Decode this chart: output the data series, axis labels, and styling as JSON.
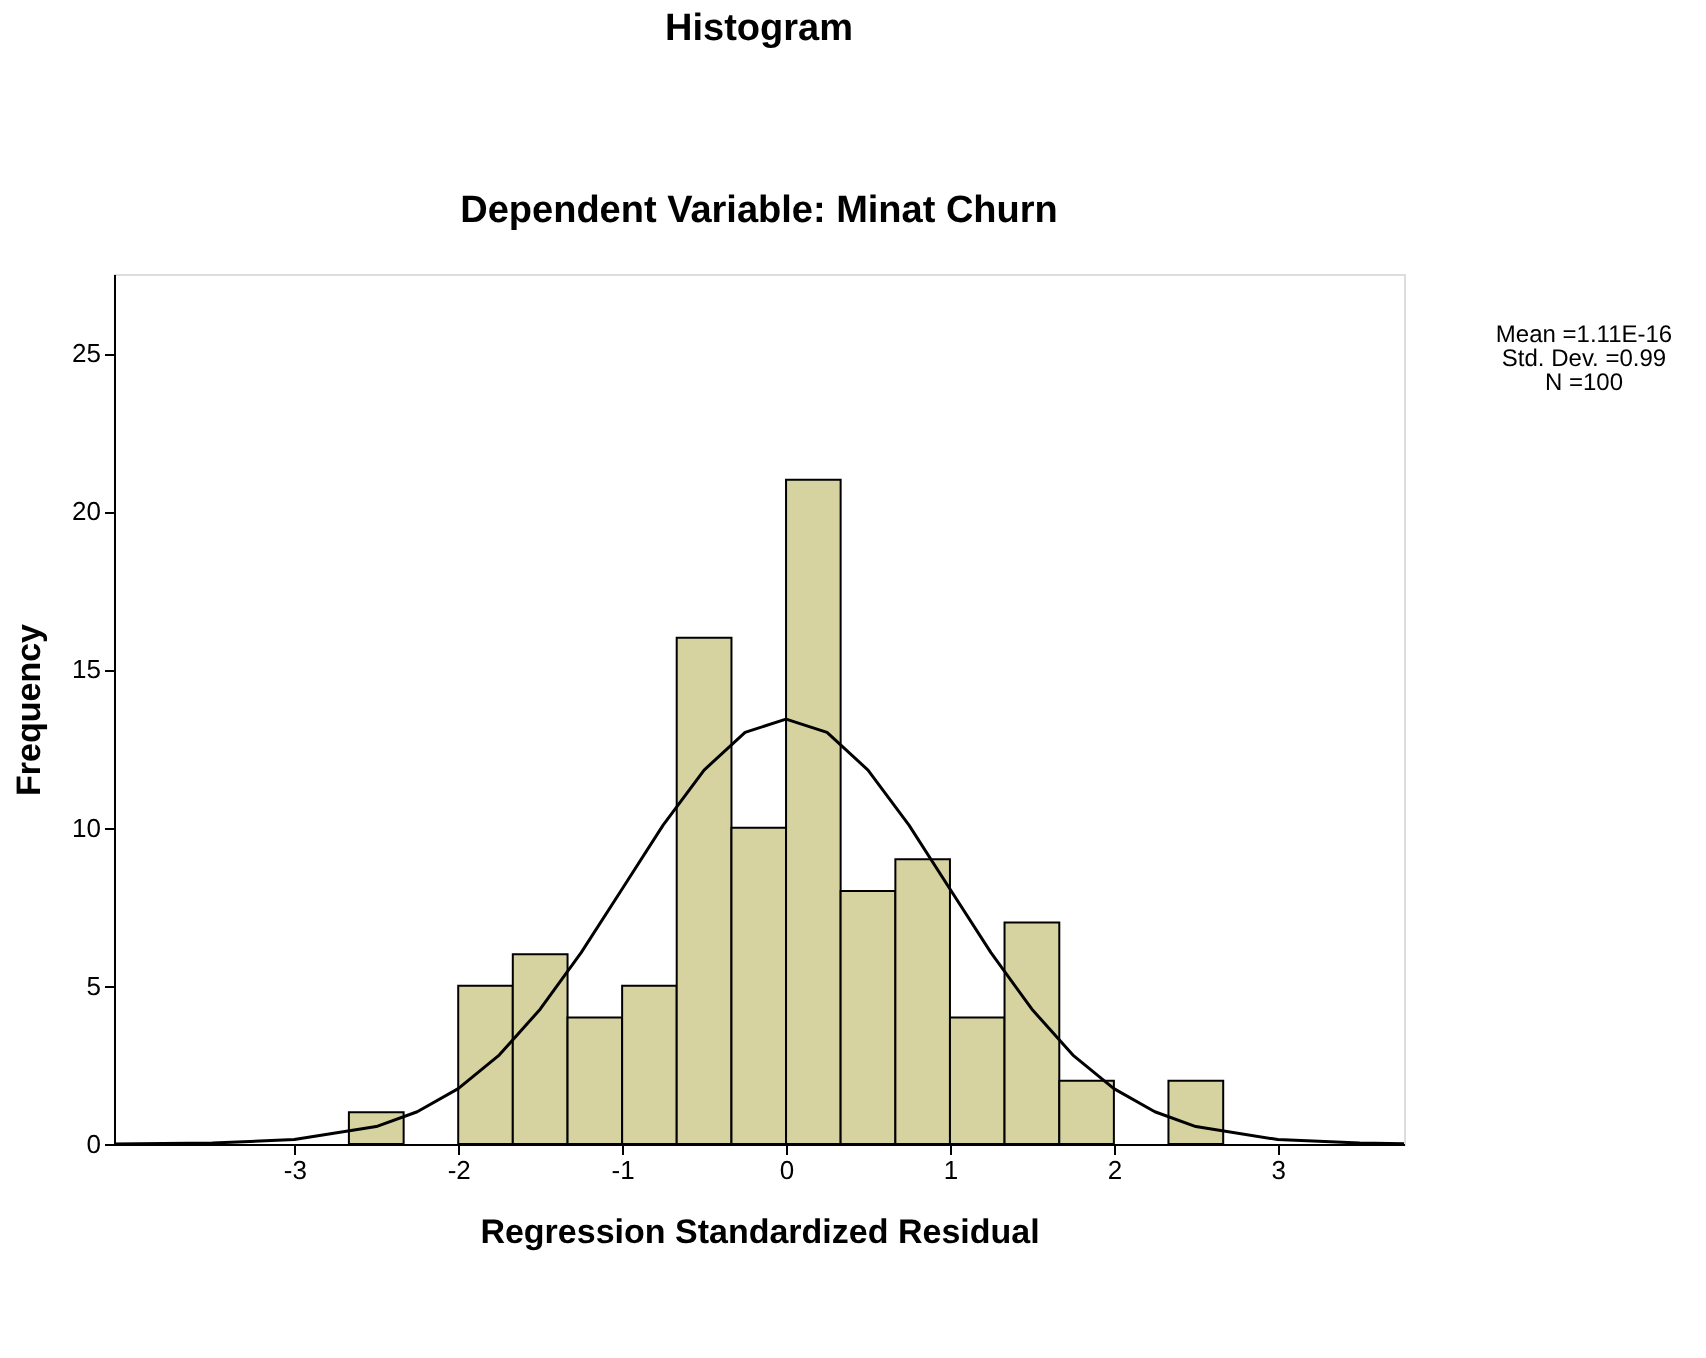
{
  "chart_data": {
    "type": "histogram",
    "title": "Histogram",
    "subtitle": "Dependent Variable: Minat Churn",
    "xlabel": "Regression Standardized Residual",
    "ylabel": "Frequency",
    "bins": [
      -2.667,
      -2.333,
      -2.0,
      -1.667,
      -1.333,
      -1.0,
      -0.667,
      -0.333,
      0.0,
      0.333,
      0.667,
      1.0,
      1.333,
      1.667,
      2.0,
      2.333,
      2.667
    ],
    "values": [
      1,
      0,
      5,
      6,
      4,
      5,
      16,
      10,
      21,
      8,
      9,
      4,
      7,
      2,
      0,
      2
    ],
    "color": "#d6d3a0",
    "series": [
      {
        "type": "line",
        "color": "#000000",
        "x": [
          -4.1,
          -3.5,
          -3.0,
          -2.5,
          -2.25,
          -2.0,
          -1.75,
          -1.5,
          -1.25,
          -1.0,
          -0.75,
          -0.5,
          -0.25,
          0.0,
          0.25,
          0.5,
          0.75,
          1.0,
          1.25,
          1.5,
          1.75,
          2.0,
          2.25,
          2.5,
          3.0,
          3.5,
          3.77
        ],
        "values": [
          0.0,
          0.03,
          0.14,
          0.55,
          1.02,
          1.75,
          2.81,
          4.26,
          6.05,
          8.06,
          10.08,
          11.82,
          13.01,
          13.43,
          13.01,
          11.82,
          10.08,
          8.06,
          6.05,
          4.26,
          2.81,
          1.75,
          1.02,
          0.55,
          0.14,
          0.03,
          0.01
        ]
      }
    ],
    "xlim": [
      -4.1,
      3.77
    ],
    "ylim": [
      0,
      27.5
    ],
    "xticks": [
      -3,
      -2,
      -1,
      0,
      1,
      2,
      3
    ],
    "yticks": [
      0,
      5,
      10,
      15,
      20,
      25
    ],
    "grid": false,
    "annotations": [
      "Mean =1.11E-16",
      "Std. Dev. =0.99",
      "N =100"
    ]
  }
}
